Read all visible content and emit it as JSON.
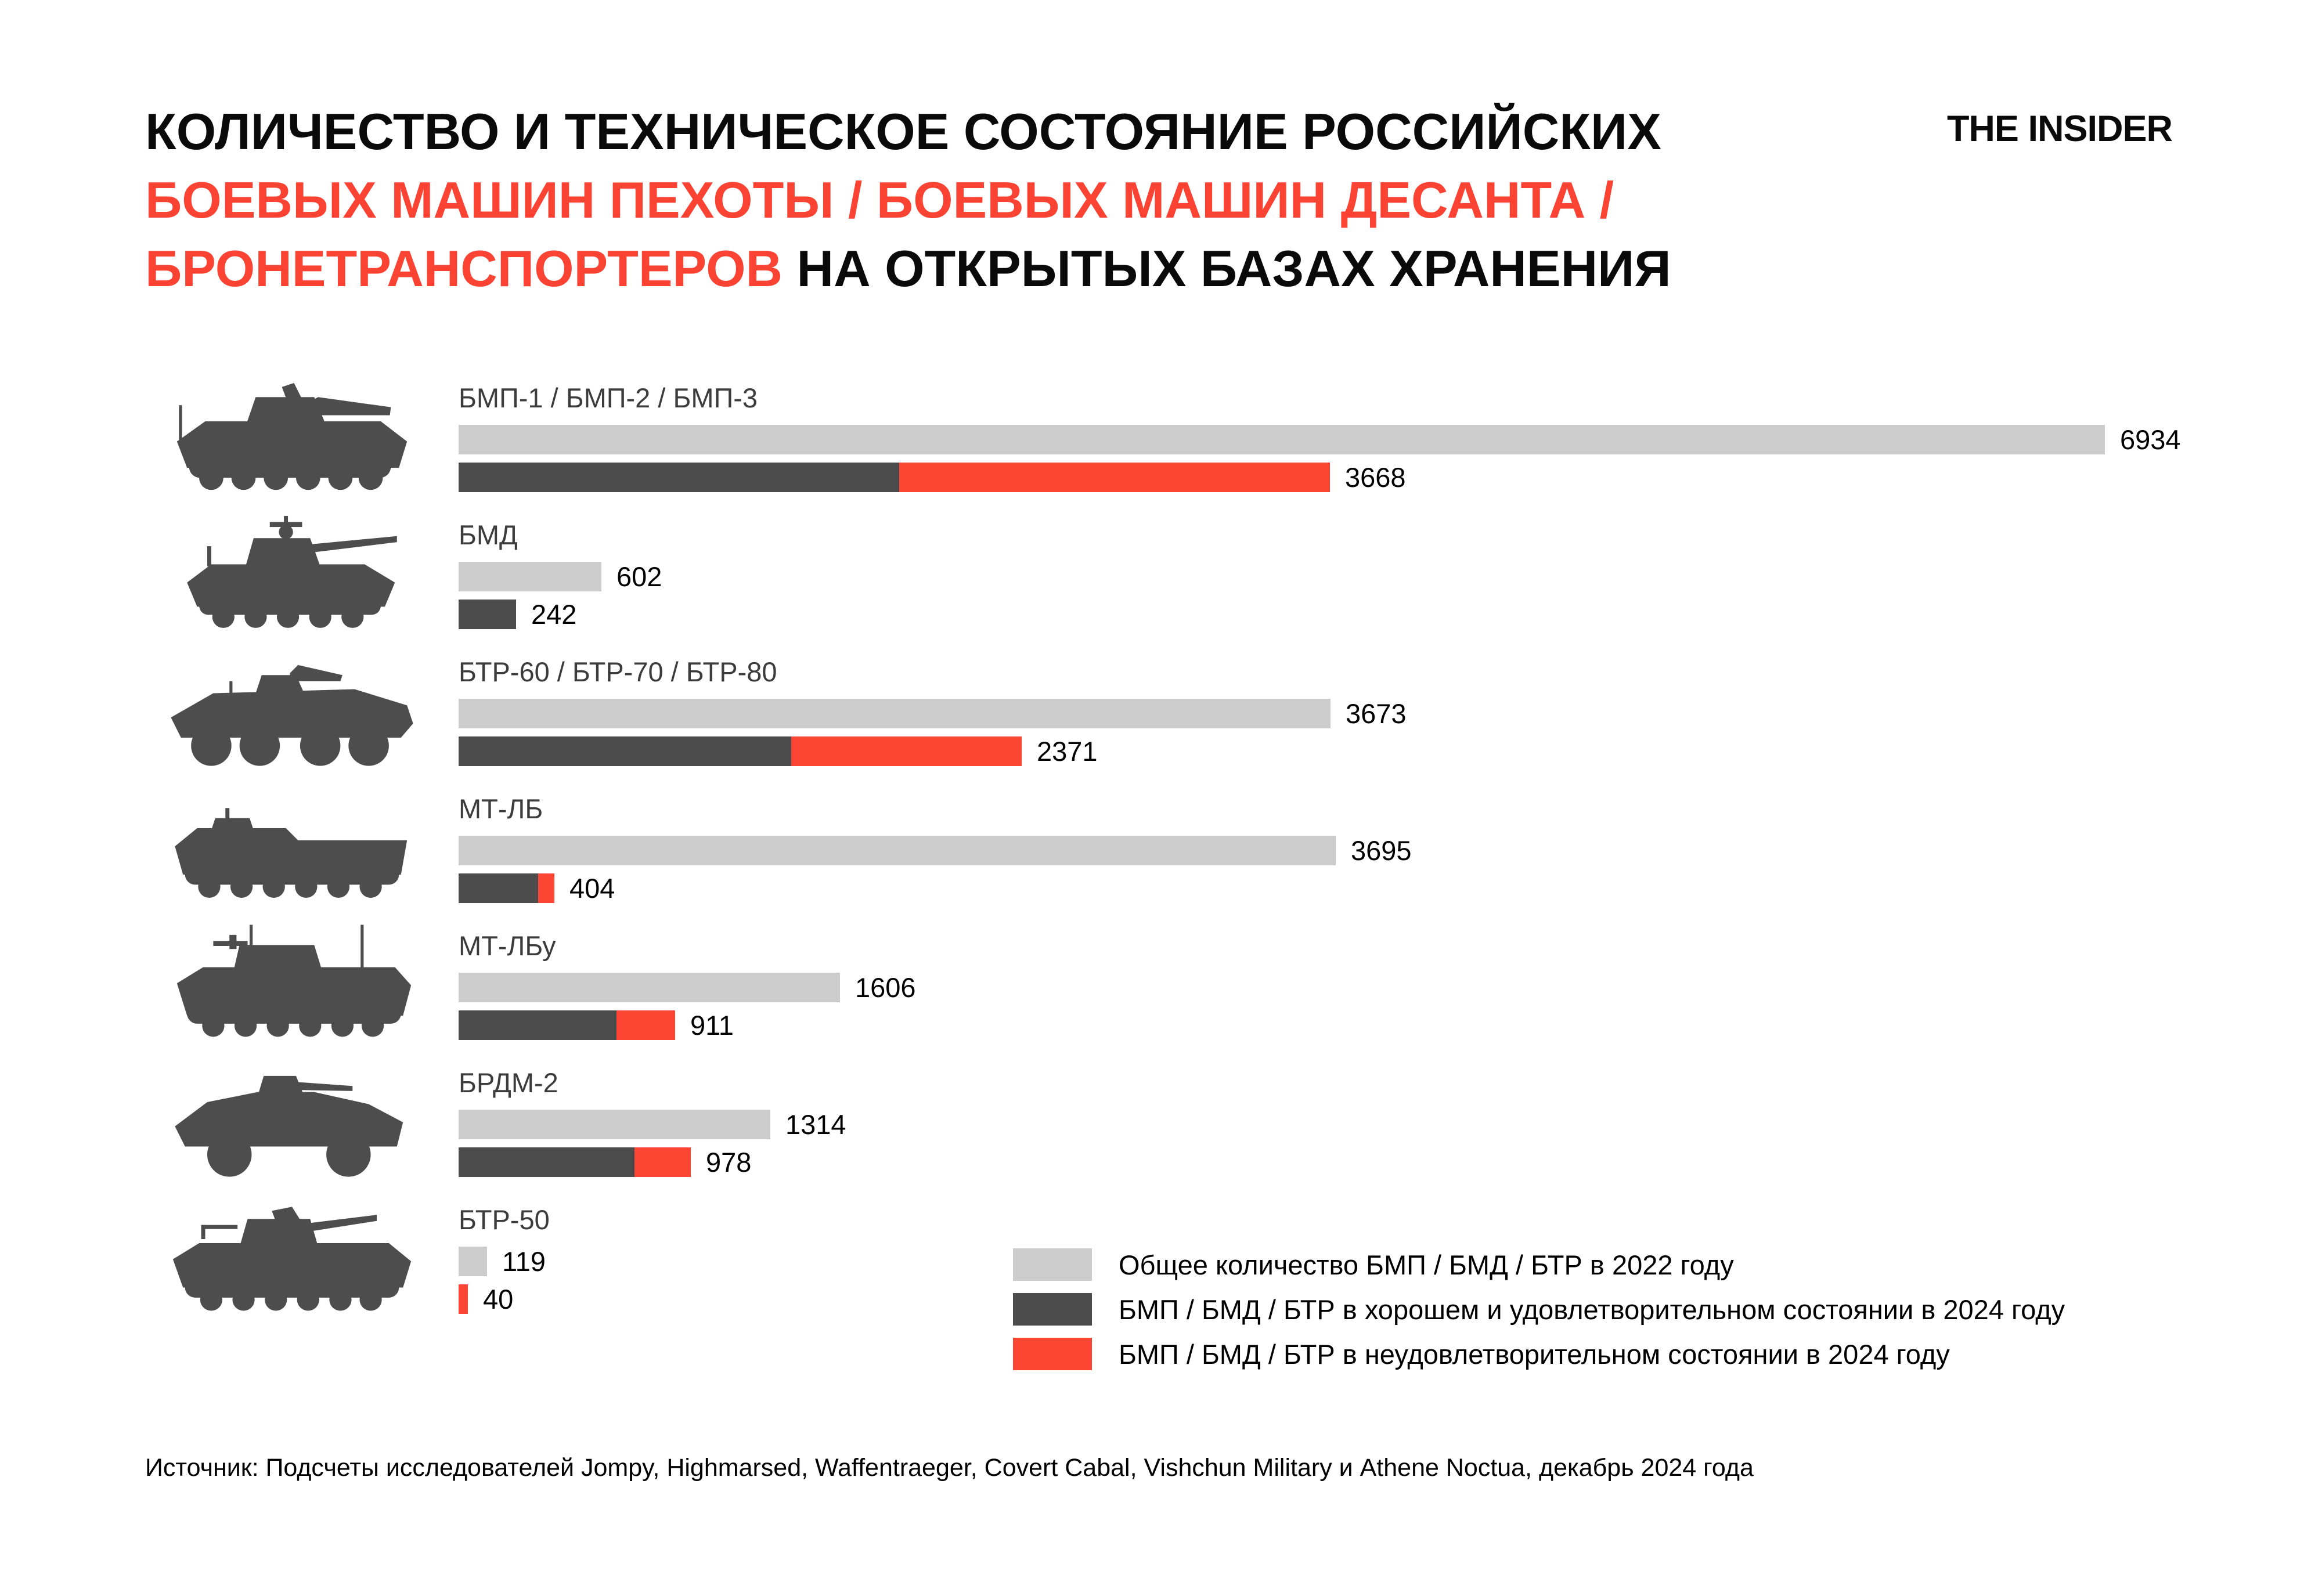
{
  "header": {
    "title_line1": "КОЛИЧЕСТВО И ТЕХНИЧЕСКОЕ СОСТОЯНИЕ РОССИЙСКИХ",
    "title_line2": "БОЕВЫХ МАШИН ПЕХОТЫ / БОЕВЫХ МАШИН ДЕСАНТА /",
    "title_line3_red": "БРОНЕТРАНСПОРТЕРОВ",
    "title_line3_black": " НА ОТКРЫТЫХ БАЗАХ ХРАНЕНИЯ",
    "logo": "THE INSIDER"
  },
  "colors": {
    "total_2022_gray": "#cccccc",
    "good_2024_dark": "#4b4b4b",
    "bad_2024_red": "#fc4532",
    "title_accent_red": "#fa4332",
    "icon_silhouette": "#4d4d4d"
  },
  "chart_data": {
    "type": "bar",
    "orientation": "horizontal",
    "xlim": [
      0,
      6934
    ],
    "grid": false,
    "legend_position": "bottom-right",
    "categories": [
      "БМП-1 / БМП-2 / БМП-3",
      "БМД",
      "БТР-60 / БТР-70 / БТР-80",
      "МТ-ЛБ",
      "МТ-ЛБу",
      "БРДМ-2",
      "БТР-50"
    ],
    "rows": [
      {
        "label": "БМП-1 / БМП-2 / БМП-3",
        "icon": "bmp",
        "total_2022": 6934,
        "total_2024": 3668,
        "good_2024_est": 1855,
        "bad_2024_est": 1813
      },
      {
        "label": "БМД",
        "icon": "bmd",
        "total_2022": 602,
        "total_2024": 242,
        "good_2024_est": 242,
        "bad_2024_est": 0
      },
      {
        "label": "БТР-60 / БТР-70 / БТР-80",
        "icon": "btr80",
        "total_2022": 3673,
        "total_2024": 2371,
        "good_2024_est": 1400,
        "bad_2024_est": 971
      },
      {
        "label": "МТ-ЛБ",
        "icon": "mtlb",
        "total_2022": 3695,
        "total_2024": 404,
        "good_2024_est": 335,
        "bad_2024_est": 69
      },
      {
        "label": "МТ-ЛБу",
        "icon": "mtlbu",
        "total_2022": 1606,
        "total_2024": 911,
        "good_2024_est": 665,
        "bad_2024_est": 246
      },
      {
        "label": "БРДМ-2",
        "icon": "brdm2",
        "total_2022": 1314,
        "total_2024": 978,
        "good_2024_est": 740,
        "bad_2024_est": 238
      },
      {
        "label": "БТР-50",
        "icon": "btr50",
        "total_2022": 119,
        "total_2024": 40,
        "good_2024_est": 0,
        "bad_2024_est": 40
      }
    ],
    "legend": [
      {
        "key": "total_2022",
        "color": "#cccccc",
        "label": "Общее количество БМП / БМД / БТР в 2022 году"
      },
      {
        "key": "good_2024",
        "color": "#4b4b4b",
        "label": "БМП / БМД / БТР в хорошем и удовлетворительном состоянии в 2024 году"
      },
      {
        "key": "bad_2024",
        "color": "#fc4532",
        "label": "БМП / БМД / БТР в неудовлетворительном состоянии в 2024 году"
      }
    ]
  },
  "source": {
    "text": "Источник: Подсчеты исследователей Jompy, Highmarsed, Waffentraeger, Covert Cabal, Vishchun Military и Athene Noctua, декабрь 2024 года"
  }
}
